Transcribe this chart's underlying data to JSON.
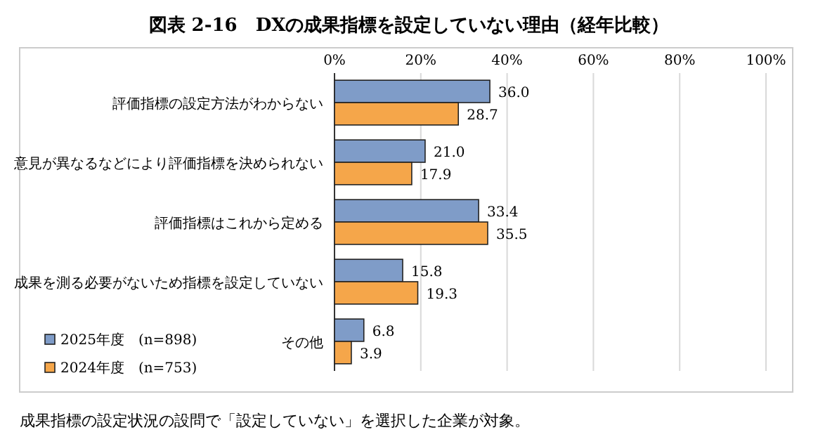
{
  "chart_data": {
    "type": "bar",
    "orientation": "horizontal",
    "title": "図表 2-16　DXの成果指標を設定していない理由（経年比較）",
    "categories": [
      "評価指標の設定方法がわからない",
      "意見が異なるなどにより評価指標を決められない",
      "評価指標はこれから定める",
      "成果を測る必要がないため指標を設定していない",
      "その他"
    ],
    "series": [
      {
        "name": "2025年度　(n=898)",
        "color": "#7f9cc8",
        "values": [
          36.0,
          21.0,
          33.4,
          15.8,
          6.8
        ],
        "value_labels": [
          "36.0",
          "21.0",
          "33.4",
          "15.8",
          "6.8"
        ]
      },
      {
        "name": "2024年度　(n=753)",
        "color": "#f5a64a",
        "values": [
          28.7,
          17.9,
          35.5,
          19.3,
          3.9
        ],
        "value_labels": [
          "28.7",
          "17.9",
          "35.5",
          "19.3",
          "3.9"
        ]
      }
    ],
    "xlim": [
      0,
      100
    ],
    "xticks": [
      {
        "value": 0,
        "label": "0%"
      },
      {
        "value": 20,
        "label": "20%"
      },
      {
        "value": 40,
        "label": "40%"
      },
      {
        "value": 60,
        "label": "60%"
      },
      {
        "value": 80,
        "label": "80%"
      },
      {
        "value": 100,
        "label": "100%"
      }
    ],
    "grid": "x",
    "legend": "bottom left",
    "annotations": [
      "成果指標の設定状況の設問で「設定していない」を選択した企業が対象。"
    ]
  }
}
